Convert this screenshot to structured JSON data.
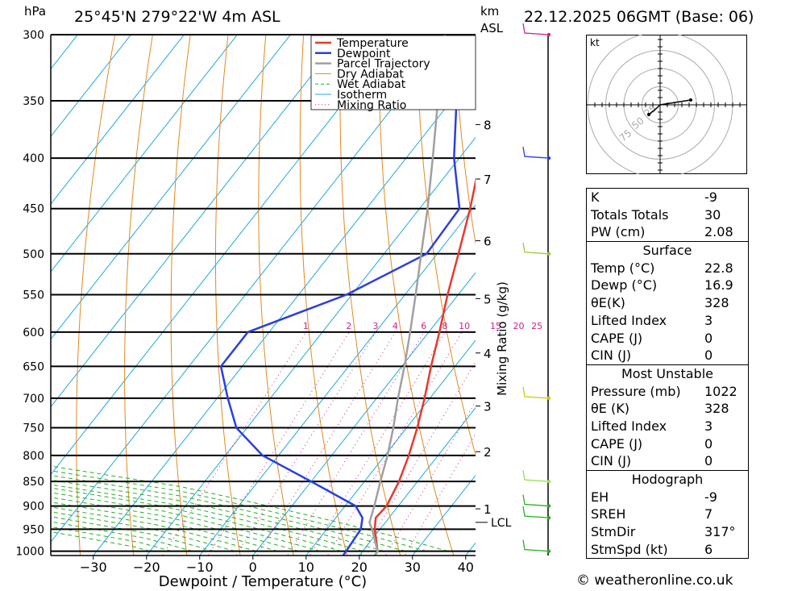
{
  "header": {
    "location": "25°45'N 279°22'W 4m ASL",
    "datetime": "22.12.2025 06GMT (Base: 06)",
    "hpa_label": "hPa",
    "km_label": "km",
    "asl_label": "ASL"
  },
  "legend": [
    {
      "label": "Temperature",
      "color": "#e8392e",
      "style": "solid"
    },
    {
      "label": "Dewpoint",
      "color": "#2a3fe0",
      "style": "solid"
    },
    {
      "label": "Parcel Trajectory",
      "color": "#a0a0a0",
      "style": "solid"
    },
    {
      "label": "Dry Adiabat",
      "color": "#e08a20",
      "style": "solid"
    },
    {
      "label": "Wet Adiabat",
      "color": "#22b022",
      "style": "dashed"
    },
    {
      "label": "Isotherm",
      "color": "#20a8e0",
      "style": "solid"
    },
    {
      "label": "Mixing Ratio",
      "color": "#d02090",
      "style": "dotted"
    }
  ],
  "chart_data": {
    "type": "line",
    "title": "25°45'N 279°22'W 4m ASL",
    "xlabel": "Dewpoint / Temperature (°C)",
    "ylabel": "hPa",
    "x_ticks": [
      "−30",
      "−20",
      "−10",
      "0",
      "10",
      "20",
      "30",
      "40"
    ],
    "y_ticks": [
      300,
      350,
      400,
      450,
      500,
      550,
      600,
      650,
      700,
      750,
      800,
      850,
      900,
      950,
      1000
    ],
    "km_ticks": [
      {
        "km": "1",
        "p": 906
      },
      {
        "km": "2",
        "p": 793
      },
      {
        "km": "3",
        "p": 713
      },
      {
        "km": "4",
        "p": 630
      },
      {
        "km": "5",
        "p": 555
      },
      {
        "km": "6",
        "p": 485
      },
      {
        "km": "7",
        "p": 420
      },
      {
        "km": "8",
        "p": 370
      }
    ],
    "lcl": {
      "label": "LCL",
      "p": 935
    },
    "mixing_ratio_label": "Mixing Ratio (g/kg)",
    "mixing_ratio_values": [
      "1",
      "2",
      "3",
      "4",
      "6",
      "8",
      "10",
      "15",
      "20",
      "25"
    ],
    "series": [
      {
        "name": "Temperature",
        "color": "#e8392e",
        "points": [
          [
            1020,
            23
          ],
          [
            1000,
            22.8
          ],
          [
            950,
            19
          ],
          [
            925,
            17.5
          ],
          [
            900,
            17.8
          ],
          [
            850,
            16.5
          ],
          [
            800,
            14.5
          ],
          [
            750,
            12
          ],
          [
            700,
            9
          ],
          [
            650,
            5.5
          ],
          [
            600,
            2
          ],
          [
            550,
            -2
          ],
          [
            500,
            -6
          ],
          [
            450,
            -10.5
          ],
          [
            400,
            -16
          ],
          [
            350,
            -22.5
          ],
          [
            300,
            -30
          ]
        ]
      },
      {
        "name": "Dewpoint",
        "color": "#2a3fe0",
        "points": [
          [
            1020,
            17
          ],
          [
            1000,
            16.9
          ],
          [
            950,
            16.4
          ],
          [
            925,
            15
          ],
          [
            900,
            12
          ],
          [
            850,
            0
          ],
          [
            800,
            -13
          ],
          [
            750,
            -22
          ],
          [
            700,
            -28
          ],
          [
            650,
            -34
          ],
          [
            600,
            -34
          ],
          [
            550,
            -21
          ],
          [
            500,
            -12
          ],
          [
            450,
            -12.5
          ],
          [
            400,
            -21
          ],
          [
            350,
            -29
          ],
          [
            300,
            -35
          ]
        ]
      },
      {
        "name": "Parcel Trajectory",
        "color": "#a0a0a0",
        "points": [
          [
            1020,
            23
          ],
          [
            1000,
            22.8
          ],
          [
            950,
            18.5
          ],
          [
            935,
            17
          ],
          [
            900,
            15.5
          ],
          [
            850,
            13
          ],
          [
            800,
            10.5
          ],
          [
            750,
            7.5
          ],
          [
            700,
            4
          ],
          [
            650,
            0.5
          ],
          [
            600,
            -3.5
          ],
          [
            550,
            -8
          ],
          [
            500,
            -13
          ],
          [
            450,
            -18.5
          ],
          [
            400,
            -25
          ],
          [
            350,
            -32.5
          ],
          [
            300,
            -41
          ]
        ]
      }
    ],
    "wind_barbs": [
      {
        "p": 300,
        "color": "#d02090"
      },
      {
        "p": 400,
        "color": "#2a3fe0"
      },
      {
        "p": 500,
        "color": "#99cc33"
      },
      {
        "p": 700,
        "color": "#cccc00"
      },
      {
        "p": 850,
        "color": "#99dd55"
      },
      {
        "p": 900,
        "color": "#22b022"
      },
      {
        "p": 925,
        "color": "#22b022"
      },
      {
        "p": 1000,
        "color": "#22b022"
      }
    ]
  },
  "hodograph": {
    "unit": "kt",
    "ring_labels": [
      "25",
      "50",
      "75"
    ]
  },
  "indices": {
    "rows": [
      {
        "label": "K",
        "value": "-9"
      },
      {
        "label": "Totals Totals",
        "value": "30"
      },
      {
        "label": "PW (cm)",
        "value": "2.08"
      }
    ],
    "surface": {
      "title": "Surface",
      "rows": [
        {
          "label": "Temp (°C)",
          "value": "22.8"
        },
        {
          "label": "Dewp (°C)",
          "value": "16.9"
        },
        {
          "label": "θE(K)",
          "value": "328"
        },
        {
          "label": "Lifted Index",
          "value": "3"
        },
        {
          "label": "CAPE (J)",
          "value": "0"
        },
        {
          "label": "CIN (J)",
          "value": "0"
        }
      ]
    },
    "most_unstable": {
      "title": "Most Unstable",
      "rows": [
        {
          "label": "Pressure (mb)",
          "value": "1022"
        },
        {
          "label": "θE (K)",
          "value": "328"
        },
        {
          "label": "Lifted Index",
          "value": "3"
        },
        {
          "label": "CAPE (J)",
          "value": "0"
        },
        {
          "label": "CIN (J)",
          "value": "0"
        }
      ]
    },
    "hodo": {
      "title": "Hodograph",
      "rows": [
        {
          "label": "EH",
          "value": "-9"
        },
        {
          "label": "SREH",
          "value": "7"
        },
        {
          "label": "StmDir",
          "value": "317°"
        },
        {
          "label": "StmSpd (kt)",
          "value": "6"
        }
      ]
    }
  },
  "footer": {
    "copyright": "© weatheronline.co.uk"
  }
}
